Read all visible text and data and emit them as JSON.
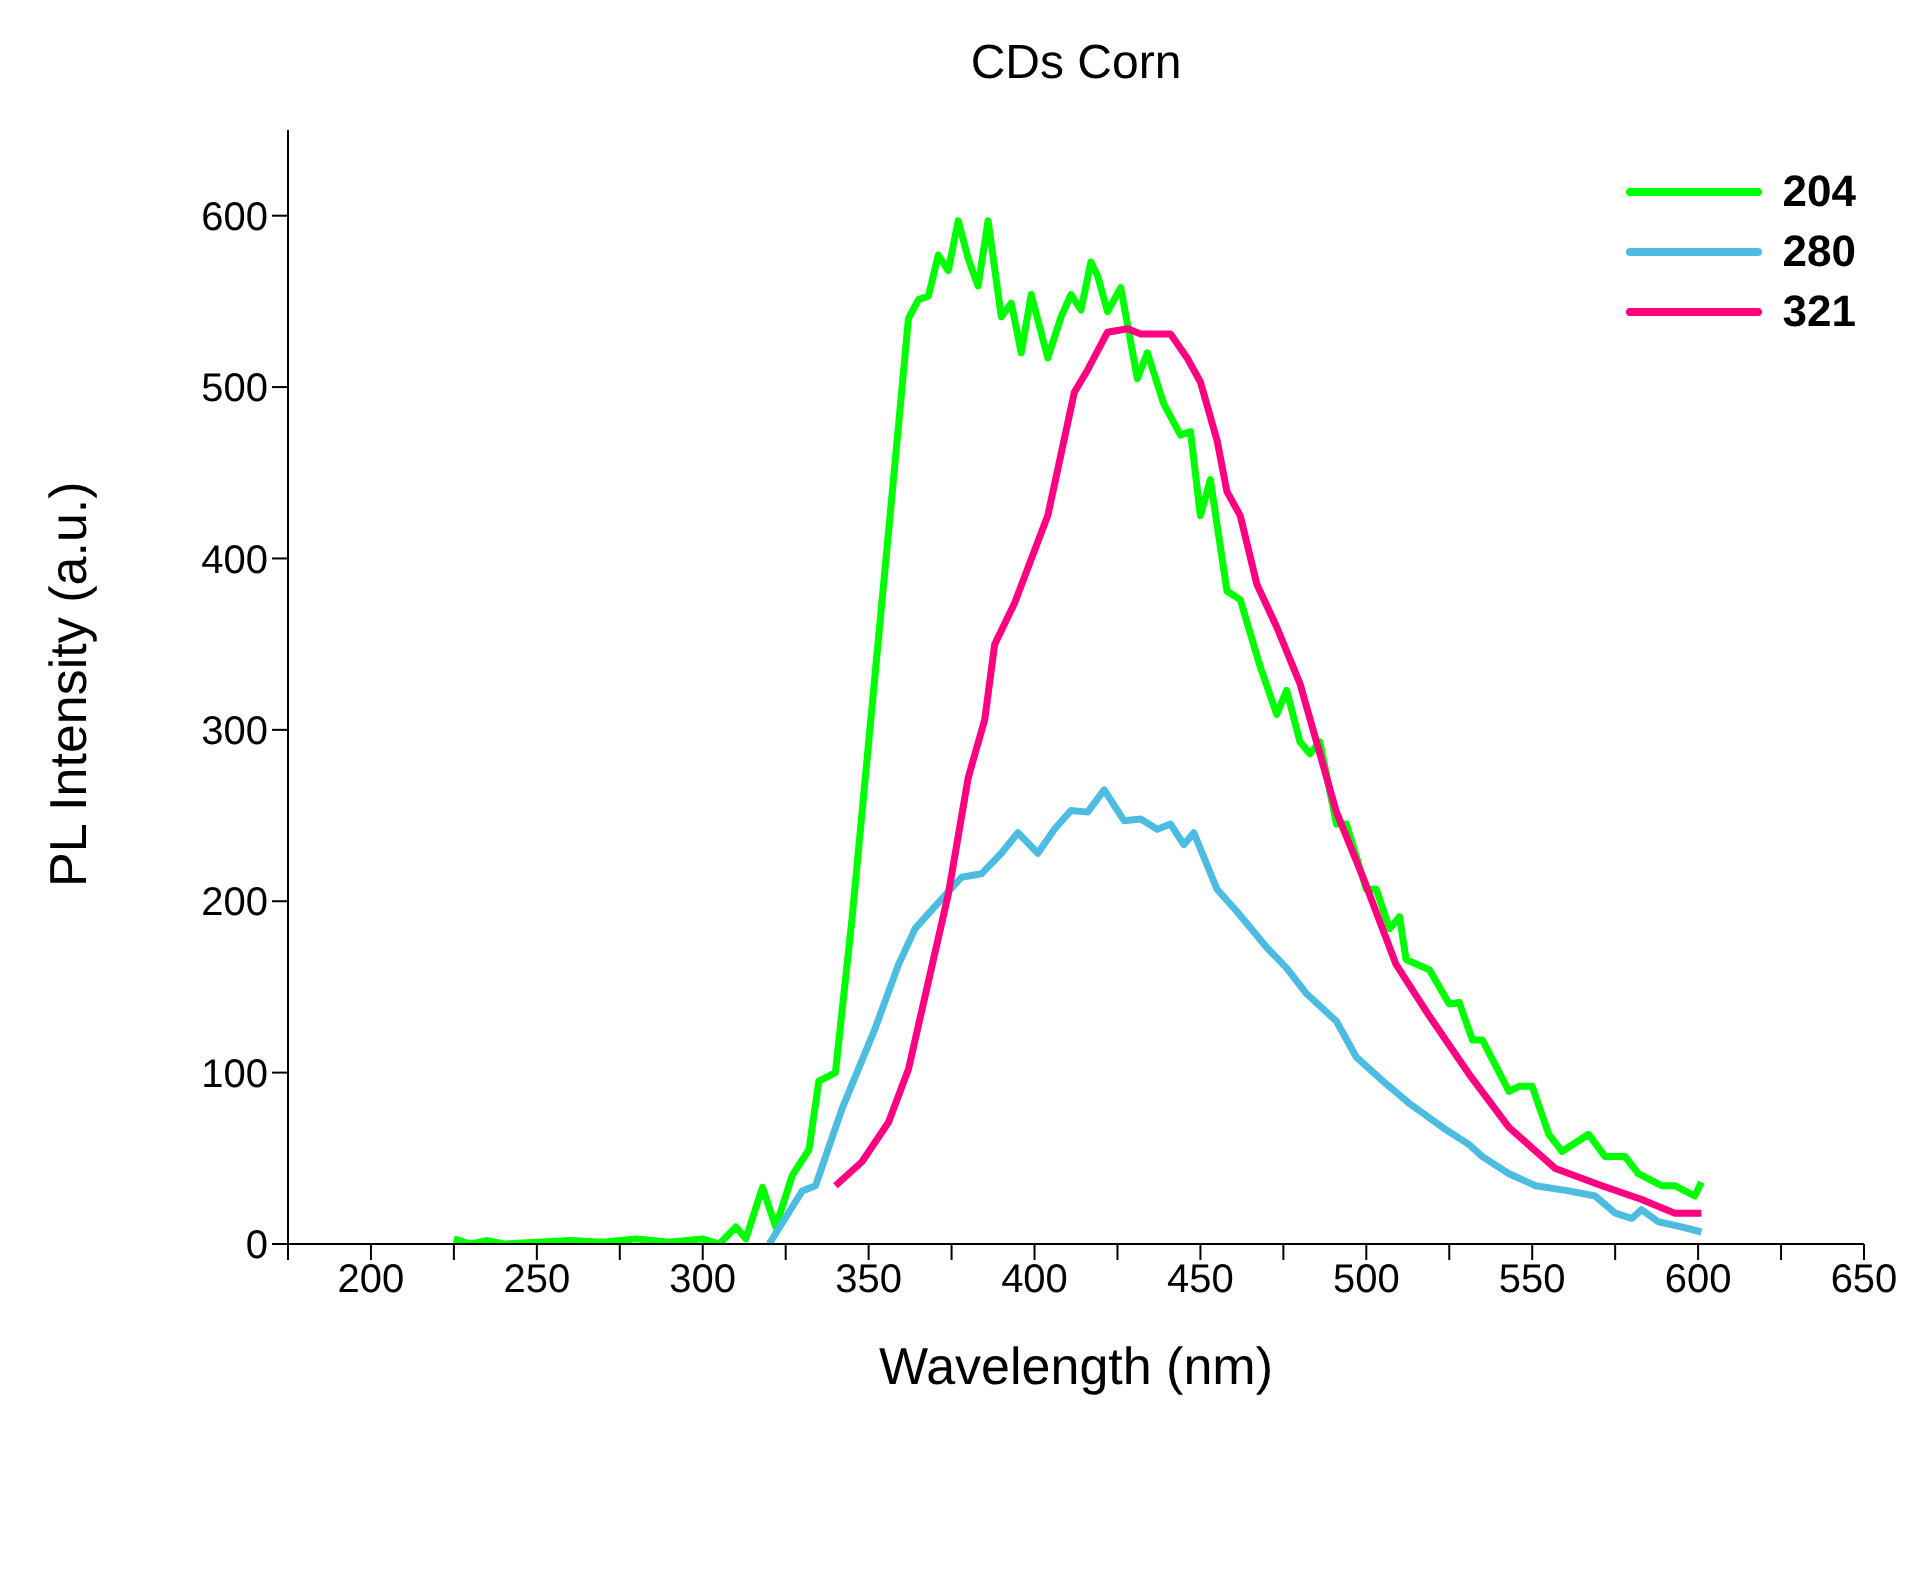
{
  "chart_data": {
    "type": "line",
    "title": "CDs Corn",
    "xlabel": "Wavelength (nm)",
    "ylabel": "PL Intensity (a.u.)",
    "xlim": [
      175,
      650
    ],
    "xticks": [
      {
        "value": 175,
        "label": null
      },
      200,
      {
        "value": 225,
        "label": null
      },
      250,
      {
        "value": 275,
        "label": null
      },
      300,
      {
        "value": 325,
        "label": null
      },
      350,
      {
        "value": 375,
        "label": null
      },
      400,
      {
        "value": 425,
        "label": null
      },
      450,
      {
        "value": 475,
        "label": null
      },
      500,
      {
        "value": 525,
        "label": null
      },
      550,
      {
        "value": 575,
        "label": null
      },
      600,
      {
        "value": 625,
        "label": null
      },
      650
    ],
    "ylim": [
      0,
      650
    ],
    "yticks": [
      0,
      100,
      200,
      300,
      400,
      500,
      600
    ],
    "grid": false,
    "legend": "top right",
    "marker": "none",
    "line_style": "solid",
    "series": [
      {
        "name": "204",
        "color": "#00ff00",
        "x": [
          225,
          230,
          235,
          240,
          250,
          260,
          270,
          280,
          290,
          300,
          305,
          310,
          313,
          318,
          322,
          327,
          332,
          335,
          340,
          345,
          351,
          357,
          362,
          365,
          368,
          371,
          374,
          377,
          380,
          383,
          386,
          390,
          393,
          396,
          399,
          404,
          408,
          411,
          414,
          417,
          419,
          422,
          426,
          431,
          434,
          439,
          444,
          447,
          450,
          453,
          458,
          462,
          468,
          473,
          476,
          480,
          483,
          486,
          491,
          494,
          500,
          503,
          507,
          510,
          512,
          519,
          525,
          528,
          532,
          535,
          543,
          546,
          550,
          555,
          559,
          567,
          572,
          578,
          582,
          589,
          593,
          596,
          599,
          601
        ],
        "values": [
          3,
          0,
          2,
          0,
          1,
          2,
          1,
          3,
          1,
          3,
          0,
          10,
          3,
          33,
          10,
          40,
          55,
          95,
          100,
          190,
          313,
          436,
          540,
          551,
          553,
          577,
          568,
          597,
          575,
          559,
          597,
          541,
          549,
          520,
          554,
          517,
          541,
          554,
          545,
          573,
          565,
          544,
          558,
          505,
          520,
          490,
          472,
          474,
          425,
          446,
          381,
          376,
          337,
          309,
          323,
          293,
          286,
          293,
          245,
          245,
          207,
          207,
          184,
          191,
          166,
          160,
          140,
          141,
          119,
          119,
          89,
          92,
          92,
          64,
          54,
          64,
          51,
          51,
          41,
          34,
          34,
          31,
          28,
          36
        ]
      },
      {
        "name": "280",
        "color": "#4cbde0",
        "x": [
          320,
          330,
          334,
          342,
          352,
          359,
          364,
          370,
          378,
          384,
          390,
          395,
          401,
          406,
          411,
          416,
          421,
          427,
          432,
          437,
          441,
          445,
          448,
          455,
          461,
          470,
          476,
          482,
          491,
          497,
          505,
          513,
          523,
          531,
          535,
          543,
          551,
          561,
          569,
          575,
          580,
          583,
          588,
          595,
          601
        ],
        "values": [
          0,
          31,
          34,
          79,
          126,
          163,
          184,
          197,
          214,
          216,
          228,
          240,
          228,
          242,
          253,
          252,
          265,
          247,
          248,
          242,
          245,
          233,
          240,
          207,
          194,
          173,
          161,
          146,
          130,
          109,
          95,
          82,
          68,
          58,
          51,
          41,
          34,
          31,
          28,
          18,
          15,
          20,
          13,
          10,
          7
        ]
      },
      {
        "name": "321",
        "color": "#ff0080",
        "x": [
          340,
          348,
          356,
          362,
          368,
          374,
          380,
          385,
          388,
          394,
          404,
          412,
          416,
          422,
          428,
          432,
          441,
          446,
          450,
          455,
          458,
          462,
          467,
          473,
          480,
          491,
          499,
          509,
          519,
          531,
          543,
          557,
          571,
          583,
          593,
          601
        ],
        "values": [
          34,
          48,
          71,
          102,
          153,
          204,
          272,
          306,
          350,
          374,
          425,
          497,
          510,
          532,
          534,
          531,
          531,
          517,
          503,
          469,
          439,
          425,
          385,
          360,
          327,
          252,
          214,
          163,
          133,
          99,
          68,
          44,
          34,
          26,
          18,
          18
        ]
      }
    ]
  }
}
